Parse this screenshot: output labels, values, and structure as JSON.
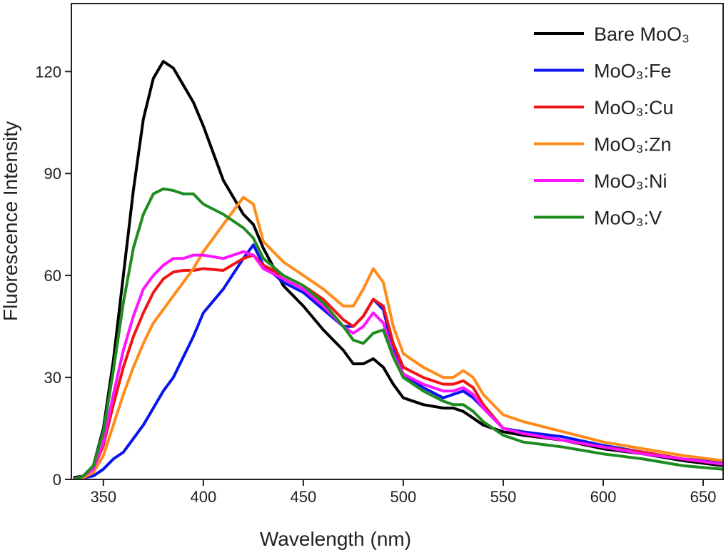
{
  "chart_data": {
    "type": "line",
    "xlabel": "Wavelength (nm)",
    "ylabel": "Fluorescence Intensity",
    "xlim": [
      334,
      660
    ],
    "ylim": [
      0,
      140
    ],
    "xticks": [
      350,
      400,
      450,
      500,
      550,
      600,
      650
    ],
    "yticks": [
      0,
      30,
      60,
      90,
      120
    ],
    "legend": "upper right",
    "x": [
      335,
      340,
      345,
      350,
      355,
      360,
      365,
      370,
      375,
      380,
      385,
      390,
      395,
      400,
      410,
      420,
      425,
      430,
      440,
      450,
      460,
      470,
      475,
      480,
      485,
      490,
      495,
      500,
      510,
      520,
      525,
      530,
      535,
      540,
      550,
      560,
      580,
      600,
      620,
      640,
      660
    ],
    "series": [
      {
        "name": "Bare MoO₃",
        "color": "#000000",
        "values": [
          0.5,
          1,
          4,
          15,
          35,
          60,
          85,
          106,
          118,
          123,
          121,
          116,
          111,
          104,
          88,
          78,
          75,
          68,
          57,
          51,
          44,
          38,
          34,
          34,
          35.5,
          33,
          28,
          24,
          22,
          21,
          21,
          20,
          18,
          16,
          14,
          13,
          11.5,
          9,
          7.5,
          5.5,
          4
        ]
      },
      {
        "name": "MoO₃:Fe",
        "color": "#0a14f0",
        "values": [
          0,
          0.5,
          1,
          3,
          6,
          8,
          12,
          16,
          21,
          26,
          30,
          36,
          42,
          49,
          56,
          65,
          69,
          63,
          58,
          55,
          50,
          45,
          45,
          48,
          53,
          50,
          38,
          31,
          27,
          24,
          25,
          26,
          24,
          21,
          15,
          14,
          12.5,
          10,
          8,
          6,
          5
        ]
      },
      {
        "name": "MoO₃:Cu",
        "color": "#f01414",
        "values": [
          0,
          1,
          3,
          10,
          22,
          33,
          42,
          49,
          55,
          59,
          61,
          61.5,
          61.5,
          62,
          61.5,
          65,
          66,
          63,
          60,
          57,
          53,
          47,
          45,
          48,
          53,
          51,
          40,
          33,
          30,
          28,
          28,
          29,
          27,
          22,
          15,
          13.5,
          11.5,
          9.5,
          8,
          6,
          4.5
        ]
      },
      {
        "name": "MoO₃:Zn",
        "color": "#ff8c1a",
        "values": [
          0,
          0.5,
          2,
          7,
          16,
          25,
          33,
          40,
          46,
          50,
          54,
          58,
          62,
          67,
          75,
          83,
          81,
          70,
          64,
          60,
          56,
          51,
          51,
          56,
          62,
          58,
          45,
          37,
          33,
          30,
          30,
          32,
          30,
          25,
          19,
          17,
          14,
          11,
          9,
          7,
          5.5
        ]
      },
      {
        "name": "MoO₃:Ni",
        "color": "#ff14ff",
        "values": [
          0,
          1,
          3,
          11,
          25,
          38,
          48,
          56,
          60,
          63,
          65,
          65,
          66,
          66,
          65,
          67,
          66,
          62,
          59,
          56,
          51,
          45,
          43,
          45,
          49,
          46,
          37,
          31,
          28,
          26,
          26,
          27,
          25,
          21,
          15,
          13.5,
          11.5,
          9.5,
          7.5,
          6,
          4.5
        ]
      },
      {
        "name": "MoO₃:V",
        "color": "#1e8c1e",
        "values": [
          0,
          1,
          4,
          14,
          32,
          52,
          68,
          78,
          84,
          85.5,
          85,
          84,
          84,
          81,
          78,
          74,
          71,
          65,
          60,
          57,
          52,
          45,
          41,
          40,
          43,
          44,
          36,
          30,
          26,
          23,
          22,
          22,
          20,
          17,
          13,
          11,
          9.5,
          7.5,
          6,
          4,
          3
        ]
      }
    ]
  }
}
